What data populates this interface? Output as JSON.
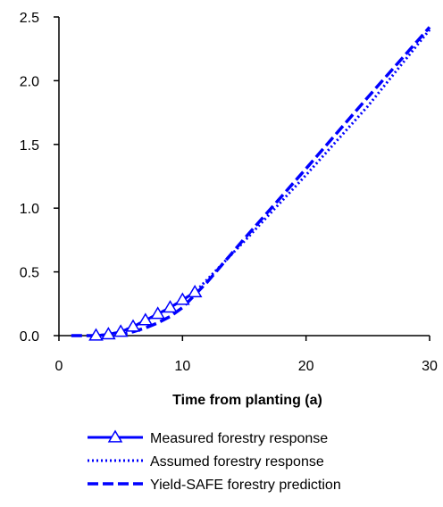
{
  "chart_data": {
    "type": "line",
    "title": "",
    "xlabel": "Time from planting (a)",
    "ylabel": "",
    "xlim": [
      0,
      30
    ],
    "ylim": [
      0,
      2.5
    ],
    "x_ticks": [
      0,
      10,
      20,
      30
    ],
    "x_tick_labels": [
      "0",
      "10",
      "20",
      "30"
    ],
    "y_ticks": [
      0,
      0.5,
      1.0,
      1.5,
      2.0,
      2.5
    ],
    "y_tick_labels": [
      "0.0",
      "0.5",
      "1.0",
      "1.5",
      "2.0",
      "2.5"
    ],
    "grid": false,
    "legend_position": "bottom",
    "series": [
      {
        "name": "Measured forestry response",
        "style": "solid-triangle",
        "color": "#0000ff",
        "x": [
          3,
          4,
          5,
          6,
          7,
          8,
          9,
          10,
          11
        ],
        "y": [
          0.0,
          0.01,
          0.03,
          0.07,
          0.12,
          0.17,
          0.22,
          0.28,
          0.34
        ]
      },
      {
        "name": "Assumed forestry response",
        "style": "dotted",
        "color": "#0000ff",
        "x": [
          3,
          4,
          5,
          6,
          7,
          8,
          9,
          10,
          11,
          12,
          15,
          20,
          25,
          30
        ],
        "y": [
          0.0,
          0.01,
          0.03,
          0.07,
          0.12,
          0.17,
          0.22,
          0.28,
          0.34,
          0.44,
          0.74,
          1.26,
          1.8,
          2.4
        ]
      },
      {
        "name": "Yield-SAFE forestry prediction",
        "style": "dashed",
        "color": "#0000ff",
        "x": [
          1,
          3,
          5,
          6,
          7,
          8,
          9,
          10,
          11,
          12,
          15,
          20,
          25,
          30
        ],
        "y": [
          0.0,
          0.0,
          0.01,
          0.03,
          0.06,
          0.1,
          0.15,
          0.22,
          0.32,
          0.42,
          0.76,
          1.31,
          1.87,
          2.42
        ]
      }
    ]
  }
}
